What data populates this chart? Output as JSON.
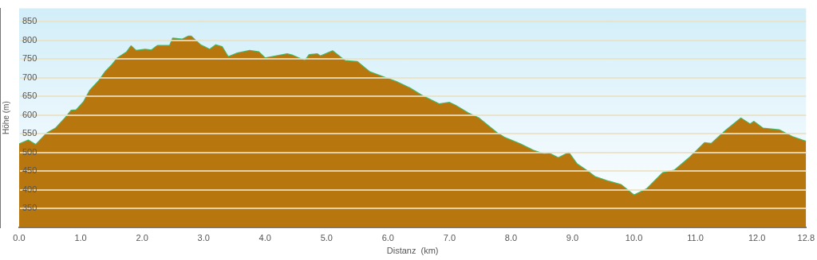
{
  "chart_data": {
    "type": "area",
    "xlabel": "Distanz  (km)",
    "ylabel": "Höhe (m)",
    "x": [
      0,
      0.15,
      0.27,
      0.45,
      0.6,
      0.75,
      0.85,
      0.93,
      1.05,
      1.15,
      1.3,
      1.4,
      1.5,
      1.6,
      1.75,
      1.82,
      1.9,
      2.05,
      2.15,
      2.25,
      2.45,
      2.5,
      2.65,
      2.75,
      2.8,
      2.95,
      3.1,
      3.2,
      3.3,
      3.4,
      3.55,
      3.75,
      3.9,
      4.0,
      4.36,
      4.45,
      4.65,
      4.72,
      4.85,
      4.9,
      5.1,
      5.3,
      5.5,
      5.7,
      5.96,
      6.13,
      6.35,
      6.55,
      6.83,
      7.0,
      7.1,
      7.3,
      7.47,
      7.77,
      7.9,
      8.15,
      8.36,
      8.54,
      8.62,
      8.77,
      8.94,
      9.07,
      9.25,
      9.36,
      9.55,
      9.79,
      10.0,
      10.21,
      10.47,
      10.66,
      10.9,
      11.15,
      11.26,
      11.5,
      11.74,
      11.89,
      11.95,
      12.1,
      12.36,
      12.57,
      12.74,
      12.8
    ],
    "series": [
      {
        "color": "#b8770e",
        "values": [
          522,
          532,
          520,
          551,
          565,
          592,
          612,
          613,
          635,
          665,
          692,
          715,
          732,
          752,
          768,
          784,
          772,
          775,
          773,
          785,
          785,
          805,
          802,
          810,
          810,
          787,
          775,
          787,
          782,
          755,
          765,
          772,
          768,
          752,
          763,
          759,
          745,
          761,
          763,
          757,
          771,
          745,
          742,
          715,
          699,
          689,
          672,
          652,
          629,
          633,
          625,
          605,
          592,
          552,
          539,
          522,
          505,
          495,
          497,
          485,
          499,
          469,
          449,
          435,
          424,
          413,
          385,
          402,
          445,
          452,
          485,
          525,
          523,
          559,
          591,
          575,
          582,
          564,
          560,
          542,
          532,
          529
        ]
      },
      {
        "type": "line",
        "color": "#3fbf6f",
        "values": [
          522,
          532,
          520,
          551,
          565,
          592,
          612,
          613,
          635,
          665,
          692,
          715,
          732,
          752,
          768,
          784,
          772,
          775,
          773,
          785,
          785,
          805,
          802,
          810,
          810,
          787,
          775,
          787,
          782,
          755,
          765,
          772,
          768,
          752,
          763,
          759,
          745,
          761,
          763,
          757,
          771,
          745,
          742,
          715,
          699,
          689,
          672,
          652,
          629,
          633,
          625,
          605,
          592,
          552,
          539,
          522,
          505,
          495,
          497,
          485,
          499,
          469,
          449,
          435,
          424,
          413,
          385,
          402,
          445,
          452,
          485,
          525,
          523,
          559,
          591,
          575,
          582,
          564,
          560,
          542,
          532,
          529
        ]
      }
    ],
    "xlim": [
      0,
      12.8
    ],
    "xticks": [
      {
        "value": 0,
        "label": "0.0"
      },
      {
        "value": 1,
        "label": "1.0"
      },
      {
        "value": 2,
        "label": "2.0"
      },
      {
        "value": 3,
        "label": "3.0"
      },
      {
        "value": 4,
        "label": "4.0"
      },
      {
        "value": 5,
        "label": "5.0"
      },
      {
        "value": 6,
        "label": "6.0"
      },
      {
        "value": 7,
        "label": "7.0"
      },
      {
        "value": 8,
        "label": "8.0"
      },
      {
        "value": 9,
        "label": "9.0"
      },
      {
        "value": 10,
        "label": "10.0"
      },
      {
        "value": 11,
        "label": "11.0"
      },
      {
        "value": 12,
        "label": "12.0"
      },
      {
        "value": 12.8,
        "label": "12.8"
      }
    ],
    "ylim": [
      300,
      885
    ],
    "yticks": [
      350,
      400,
      450,
      500,
      550,
      600,
      650,
      700,
      750,
      800,
      850
    ],
    "grid": "y",
    "legend": false,
    "marker": "none"
  }
}
